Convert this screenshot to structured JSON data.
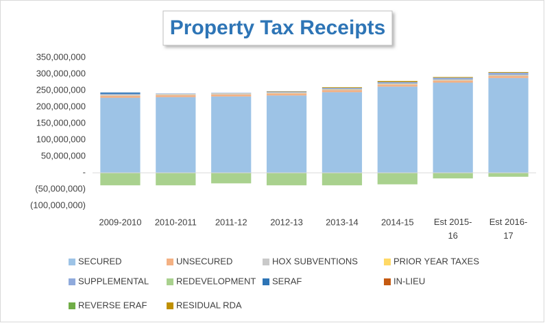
{
  "chart_data": {
    "type": "stacked_bar",
    "title": "Property Tax Receipts",
    "categories": [
      "2009-2010",
      "2010-2011",
      "2011-12",
      "2012-13",
      "2013-14",
      "2014-15",
      "Est 2015-16",
      "Est 2016-17"
    ],
    "series": [
      {
        "name": "SECURED",
        "color": "#9dc3e6",
        "values": [
          228000000,
          230000000,
          232000000,
          235000000,
          245000000,
          262000000,
          274000000,
          288000000
        ]
      },
      {
        "name": "UNSECURED",
        "color": "#f4b183",
        "values": [
          6000000,
          6000000,
          6000000,
          6000000,
          6000000,
          6000000,
          6000000,
          6000000
        ]
      },
      {
        "name": "HOX SUBVENTIONS",
        "color": "#c9c9c9",
        "values": [
          2000000,
          2000000,
          2000000,
          2000000,
          2000000,
          2000000,
          2000000,
          2000000
        ]
      },
      {
        "name": "PRIOR YEAR TAXES",
        "color": "#ffd966",
        "values": [
          1000000,
          1000000,
          1000000,
          1000000,
          1000000,
          1000000,
          1000000,
          1000000
        ]
      },
      {
        "name": "SUPPLEMENTAL",
        "color": "#8faadc",
        "values": [
          3000000,
          2000000,
          2000000,
          3000000,
          4000000,
          5000000,
          6000000,
          7000000
        ]
      },
      {
        "name": "REDEVELOPMENT",
        "color": "#a9d18e",
        "values": [
          -38000000,
          -38000000,
          -32000000,
          -38000000,
          -38000000,
          -35000000,
          -17000000,
          -12000000
        ]
      },
      {
        "name": "SERAF",
        "color": "#2e75b6",
        "values": [
          4000000,
          0,
          0,
          0,
          0,
          0,
          0,
          0
        ]
      },
      {
        "name": "IN-LIEU",
        "color": "#c55a11",
        "values": [
          0,
          0,
          0,
          0,
          0,
          0,
          0,
          0
        ]
      },
      {
        "name": "REVERSE ERAF",
        "color": "#70ad47",
        "values": [
          0,
          0,
          0,
          0,
          0,
          0,
          0,
          0
        ]
      },
      {
        "name": "RESIDUAL RDA",
        "color": "#bf9000",
        "values": [
          0,
          0,
          0,
          1000000,
          2000000,
          3000000,
          2000000,
          2000000
        ]
      }
    ],
    "ylim": [
      -100000000,
      350000000
    ],
    "yticks": [
      {
        "value": -100000000,
        "label": "(100,000,000)"
      },
      {
        "value": -50000000,
        "label": "(50,000,000)"
      },
      {
        "value": 0,
        "label": "-"
      },
      {
        "value": 50000000,
        "label": "50,000,000"
      },
      {
        "value": 100000000,
        "label": "100,000,000"
      },
      {
        "value": 150000000,
        "label": "150,000,000"
      },
      {
        "value": 200000000,
        "label": "200,000,000"
      },
      {
        "value": 250000000,
        "label": "250,000,000"
      },
      {
        "value": 300000000,
        "label": "300,000,000"
      },
      {
        "value": 350000000,
        "label": "350,000,000"
      }
    ],
    "grid": false
  }
}
